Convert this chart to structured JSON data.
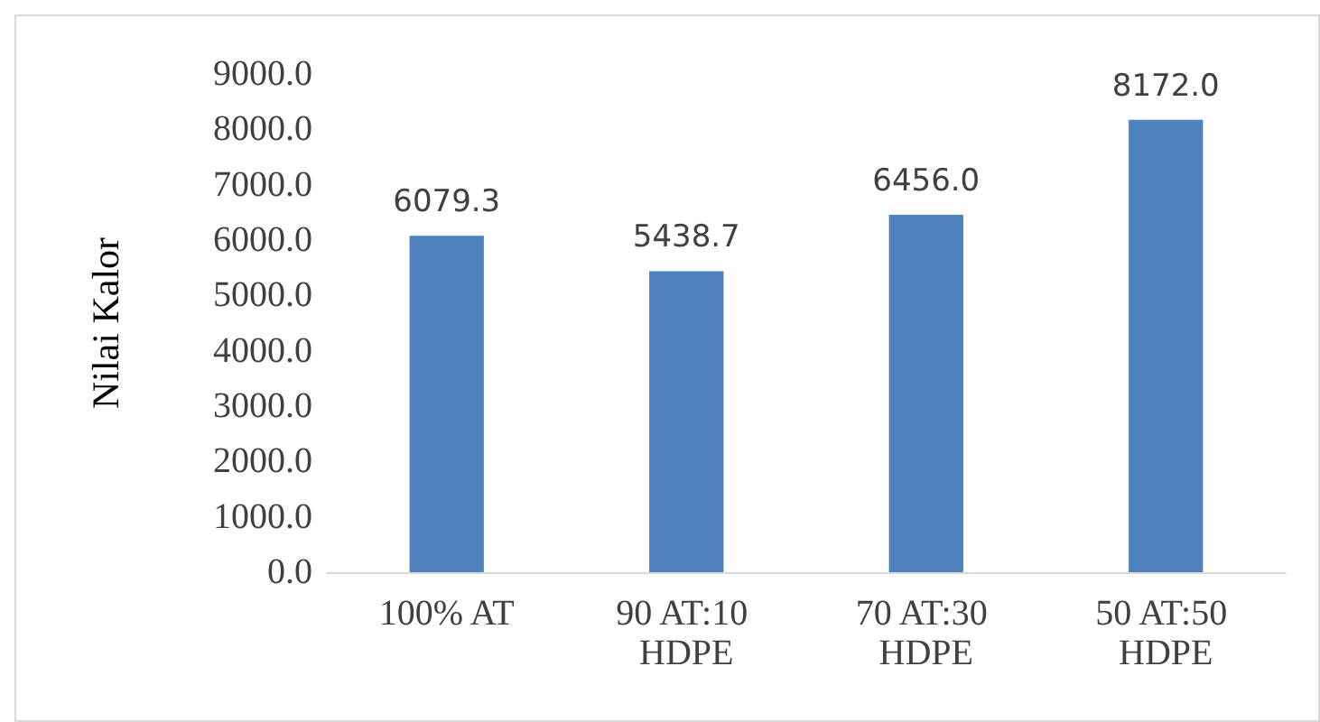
{
  "chart_data": {
    "type": "bar",
    "ylabel": "Nilai Kalor",
    "categories": [
      "100% AT",
      "90 AT:10 HDPE",
      "70 AT:30 HDPE",
      "50 AT:50 HDPE"
    ],
    "values": [
      6079.3,
      5438.7,
      6456.0,
      8172.0
    ],
    "value_labels": [
      "6079.3",
      "5438.7",
      "6456.0",
      "8172.0"
    ],
    "color": "#4f81bd",
    "ylim": [
      0,
      9000
    ],
    "yticks": [
      {
        "value": 0,
        "label": "0.0"
      },
      {
        "value": 1000,
        "label": "1000.0"
      },
      {
        "value": 2000,
        "label": "2000.0"
      },
      {
        "value": 3000,
        "label": "3000.0"
      },
      {
        "value": 4000,
        "label": "4000.0"
      },
      {
        "value": 5000,
        "label": "5000.0"
      },
      {
        "value": 6000,
        "label": "6000.0"
      },
      {
        "value": 7000,
        "label": "7000.0"
      },
      {
        "value": 8000,
        "label": "8000.0"
      },
      {
        "value": 9000,
        "label": "9000.0"
      }
    ],
    "grid": false
  }
}
